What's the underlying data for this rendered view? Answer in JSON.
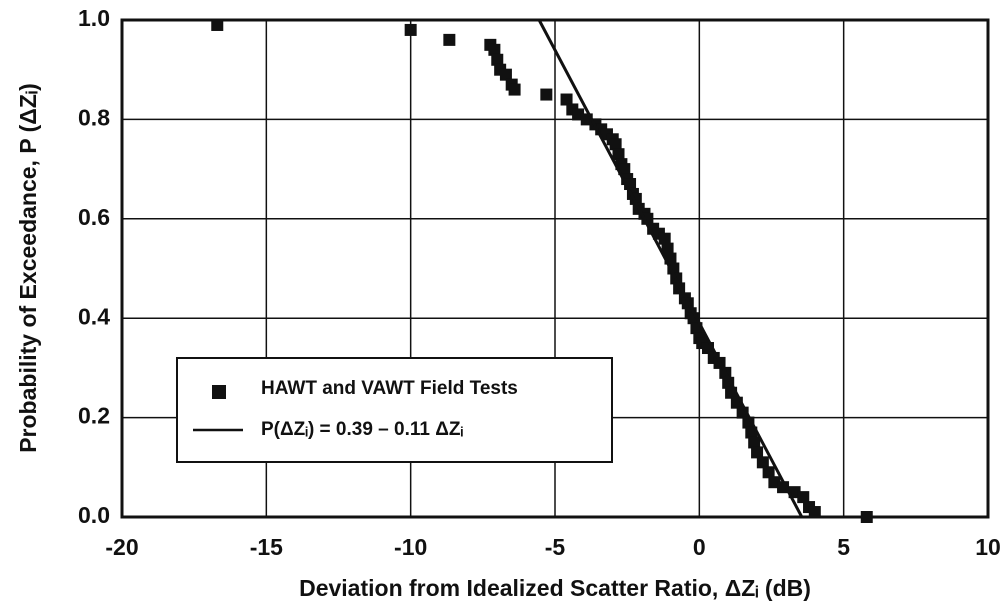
{
  "chart_data": {
    "type": "scatter",
    "xlabel": "Deviation from Idealized Scatter Ratio, ΔZᵢ (dB)",
    "ylabel": "Probability of Exceedance, P (ΔZᵢ)",
    "xlim": [
      -20,
      10
    ],
    "ylim": [
      0,
      1
    ],
    "xticks": [
      -20,
      -15,
      -10,
      -5,
      0,
      5,
      10
    ],
    "yticks": [
      {
        "value": 0,
        "label": "0.0"
      },
      0.2,
      0.4,
      0.6,
      0.8,
      {
        "value": 1,
        "label": "1.0"
      }
    ],
    "grid": true,
    "legend": "lower left",
    "series": [
      {
        "name": "HAWT and VAWT Field Tests",
        "type": "scatter",
        "marker": "square",
        "color": "#111111",
        "x": [
          -16.7,
          -10.0,
          -8.66,
          -7.24,
          -7.1,
          -7.0,
          -6.9,
          -6.7,
          -6.5,
          -6.4,
          -5.3,
          -4.6,
          -4.4,
          -4.2,
          -3.9,
          -3.6,
          -3.4,
          -3.2,
          -3.0,
          -2.9,
          -2.8,
          -2.7,
          -2.6,
          -2.5,
          -2.4,
          -2.3,
          -2.2,
          -2.1,
          -1.9,
          -1.8,
          -1.6,
          -1.4,
          -1.2,
          -1.1,
          -1.0,
          -0.9,
          -0.8,
          -0.7,
          -0.5,
          -0.4,
          -0.3,
          -0.2,
          -0.1,
          0.0,
          0.1,
          0.3,
          0.5,
          0.7,
          0.9,
          1.0,
          1.1,
          1.3,
          1.5,
          1.7,
          1.8,
          1.9,
          2.0,
          2.2,
          2.4,
          2.6,
          2.9,
          3.3,
          3.6,
          3.8,
          4.0,
          5.8
        ],
        "values": [
          0.99,
          0.98,
          0.96,
          0.95,
          0.94,
          0.92,
          0.9,
          0.89,
          0.87,
          0.86,
          0.85,
          0.84,
          0.82,
          0.81,
          0.8,
          0.79,
          0.78,
          0.77,
          0.76,
          0.75,
          0.73,
          0.71,
          0.7,
          0.68,
          0.67,
          0.65,
          0.64,
          0.62,
          0.61,
          0.6,
          0.58,
          0.57,
          0.56,
          0.54,
          0.52,
          0.5,
          0.48,
          0.46,
          0.44,
          0.43,
          0.41,
          0.4,
          0.38,
          0.36,
          0.35,
          0.34,
          0.32,
          0.31,
          0.29,
          0.27,
          0.25,
          0.23,
          0.21,
          0.19,
          0.17,
          0.15,
          0.13,
          0.11,
          0.09,
          0.07,
          0.06,
          0.05,
          0.04,
          0.02,
          0.01,
          0.0
        ]
      },
      {
        "name": "P(ΔZᵢ) = 0.39 – 0.11 ΔZᵢ",
        "type": "line",
        "color": "#111111",
        "x": [
          -5.55,
          3.55
        ],
        "values": [
          1.0,
          0.0
        ]
      }
    ]
  }
}
